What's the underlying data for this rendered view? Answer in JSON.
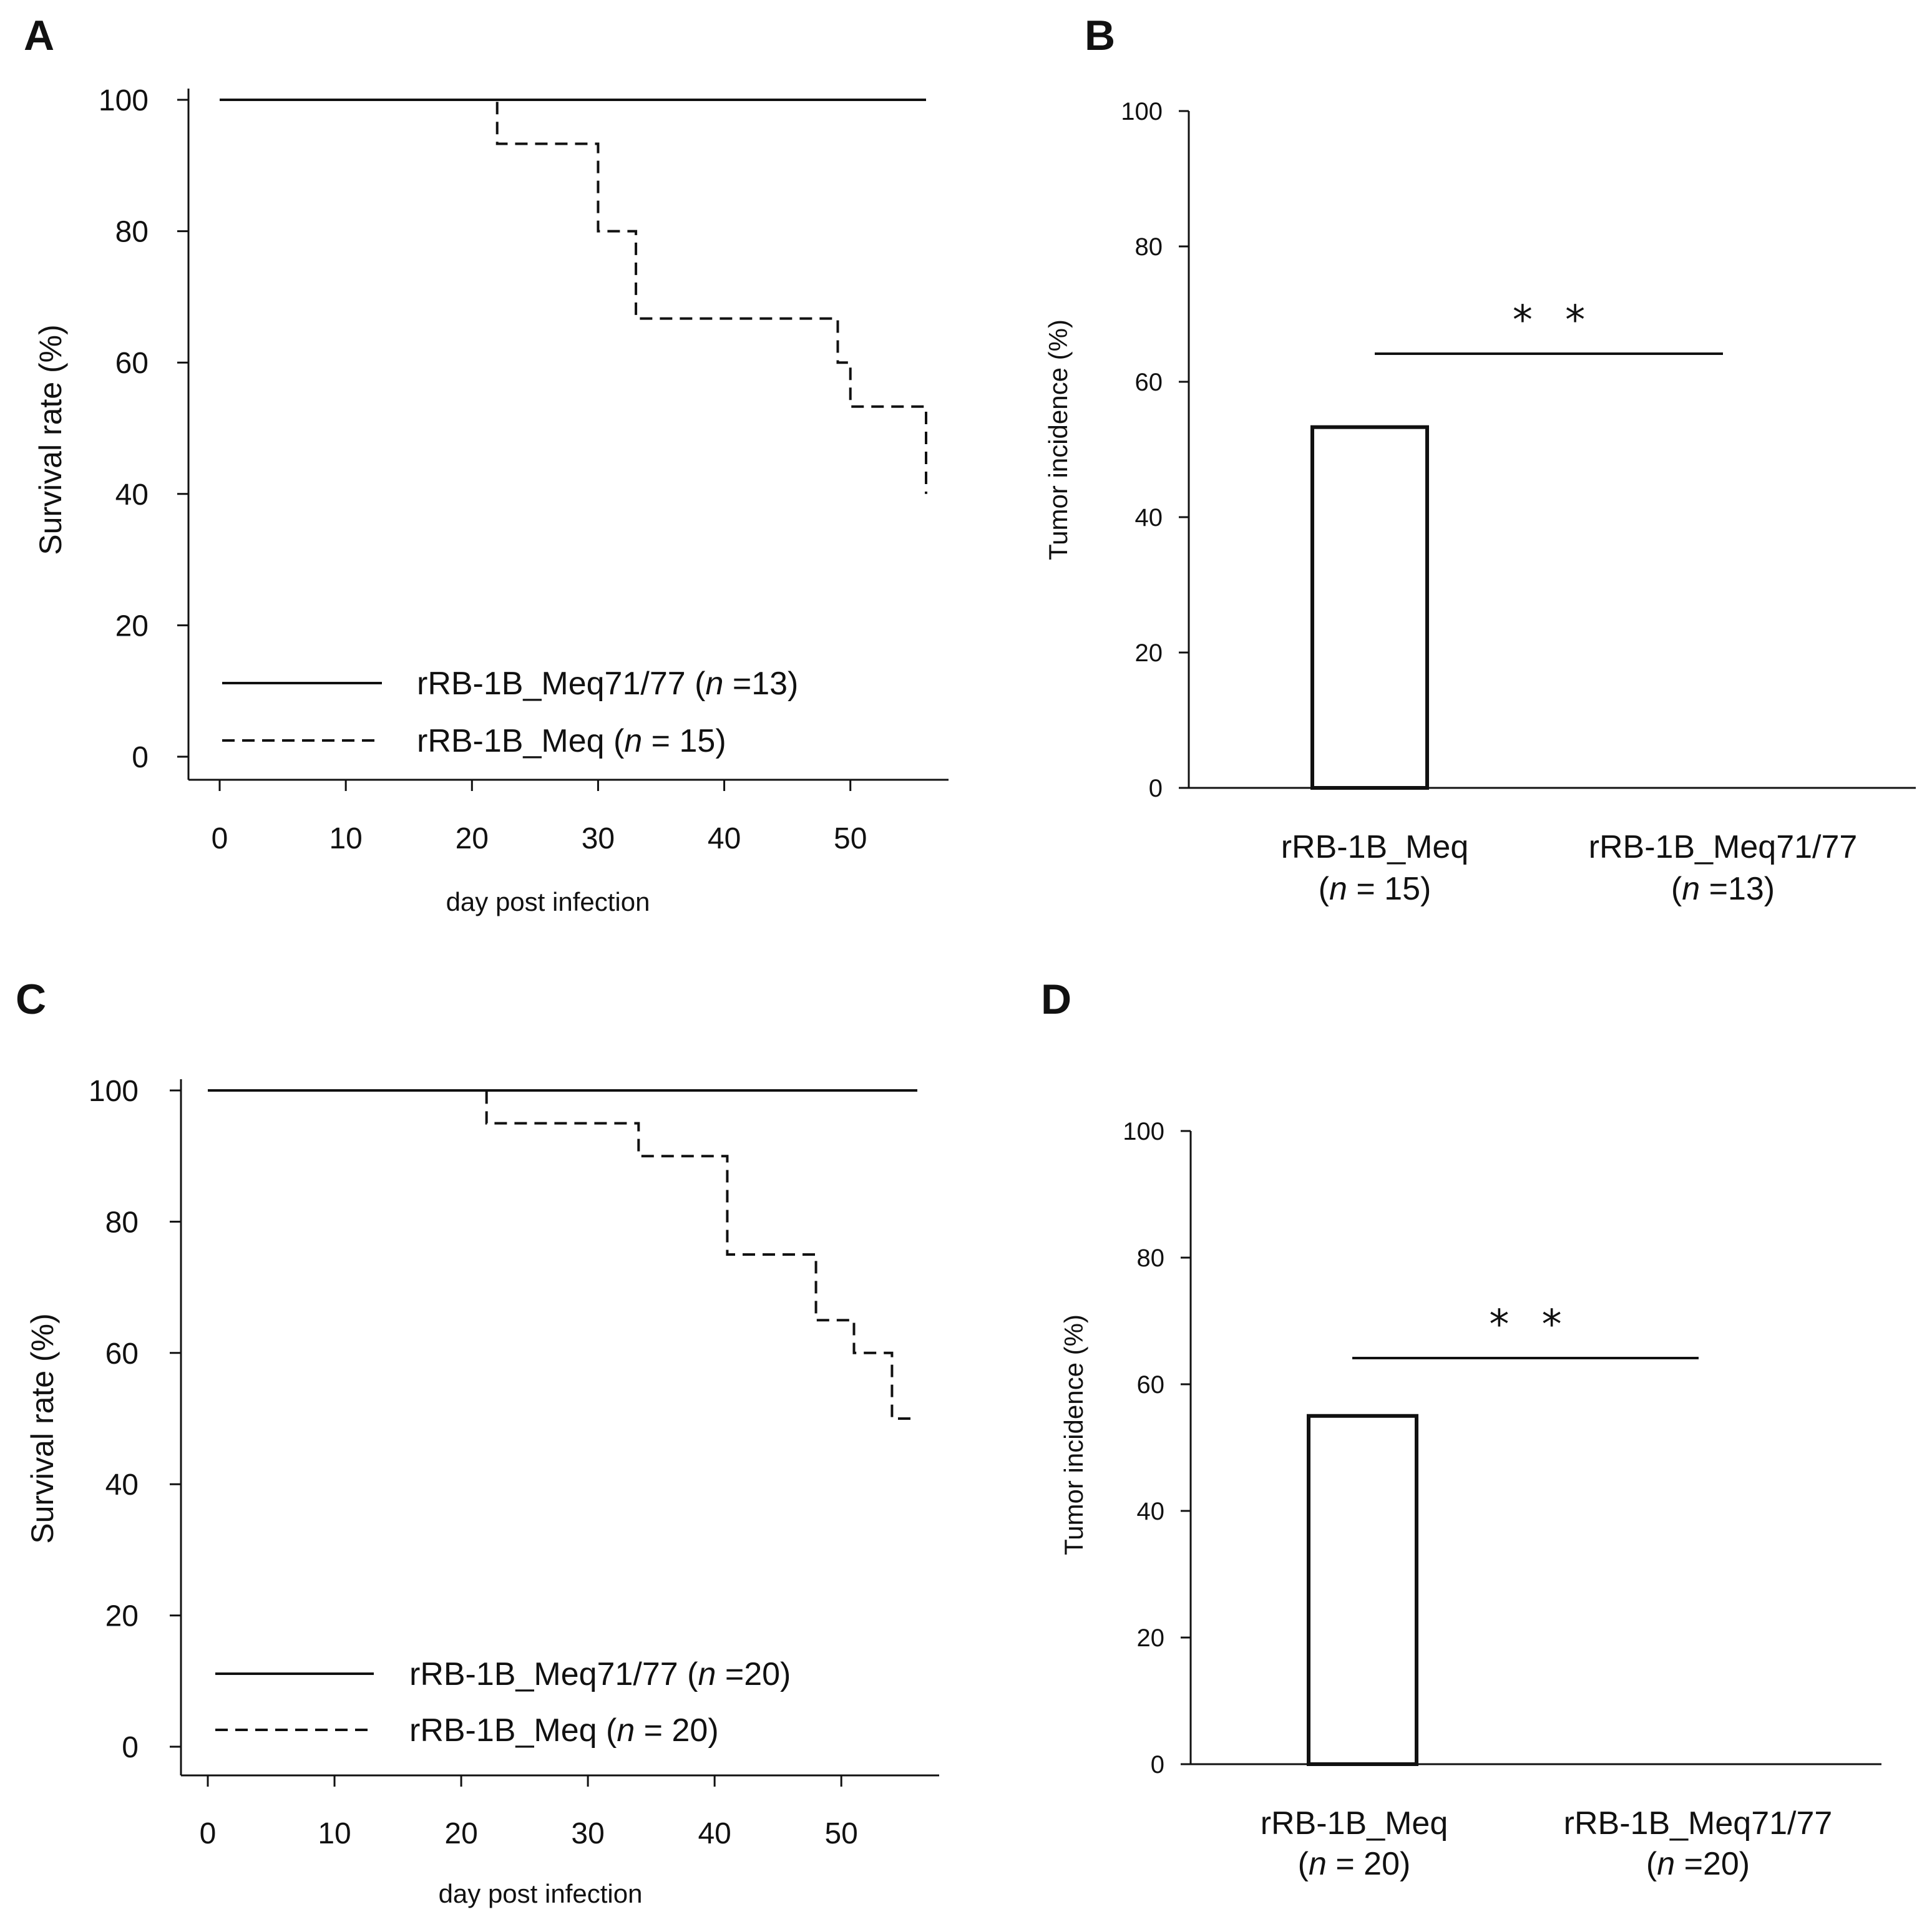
{
  "figure_caption": "",
  "chart_data": [
    {
      "panel": "A",
      "type": "line",
      "title": "",
      "xlabel": "day post infection",
      "ylabel": "Survival rate (%)",
      "xlim": [
        0,
        56
      ],
      "ylim": [
        0,
        100
      ],
      "xticks": [
        0,
        10,
        20,
        30,
        40,
        50
      ],
      "yticks": [
        0,
        20,
        40,
        60,
        80,
        100
      ],
      "series": [
        {
          "name": "rRB-1B_Meq71/77",
          "n_label": "13",
          "style": "solid",
          "x": [
            0,
            56
          ],
          "y": [
            100,
            100
          ]
        },
        {
          "name": "rRB-1B_Meq",
          "n_label": "15",
          "style": "dashed",
          "x": [
            22,
            30,
            33,
            49,
            50,
            56,
            56
          ],
          "y": [
            93.3,
            80,
            66.7,
            60,
            53.3,
            53.3,
            40
          ]
        }
      ],
      "legend_position": "bottom-left"
    },
    {
      "panel": "B",
      "type": "bar",
      "title": "",
      "xlabel": "",
      "ylabel": "Tumor incidence (%)",
      "ylim": [
        0,
        100
      ],
      "yticks": [
        0,
        20,
        40,
        60,
        80,
        100
      ],
      "categories": [
        "rRB-1B_Meq",
        "rRB-1B_Meq71/77"
      ],
      "n_labels": [
        "15",
        "13"
      ],
      "values": [
        53.3,
        0
      ],
      "significance": "* *"
    },
    {
      "panel": "C",
      "type": "line",
      "title": "",
      "xlabel": "day post infection",
      "ylabel": "Survival rate (%)",
      "xlim": [
        0,
        56
      ],
      "ylim": [
        0,
        100
      ],
      "xticks": [
        0,
        10,
        20,
        30,
        40,
        50
      ],
      "yticks": [
        0,
        20,
        40,
        60,
        80,
        100
      ],
      "series": [
        {
          "name": "rRB-1B_Meq71/77",
          "n_label": "20",
          "style": "solid",
          "x": [
            0,
            56
          ],
          "y": [
            100,
            100
          ]
        },
        {
          "name": "rRB-1B_Meq",
          "n_label": "20",
          "style": "dashed",
          "x": [
            22,
            34,
            41,
            48,
            51,
            54,
            56
          ],
          "y": [
            95,
            90,
            75,
            65,
            60,
            50,
            50
          ]
        }
      ],
      "legend_position": "bottom-left"
    },
    {
      "panel": "D",
      "type": "bar",
      "title": "",
      "xlabel": "",
      "ylabel": "Tumor incidence (%)",
      "ylim": [
        0,
        100
      ],
      "yticks": [
        0,
        20,
        40,
        60,
        80,
        100
      ],
      "categories": [
        "rRB-1B_Meq",
        "rRB-1B_Meq71/77"
      ],
      "n_labels": [
        "20",
        "20"
      ],
      "values": [
        55,
        0
      ],
      "significance": "* *"
    }
  ]
}
